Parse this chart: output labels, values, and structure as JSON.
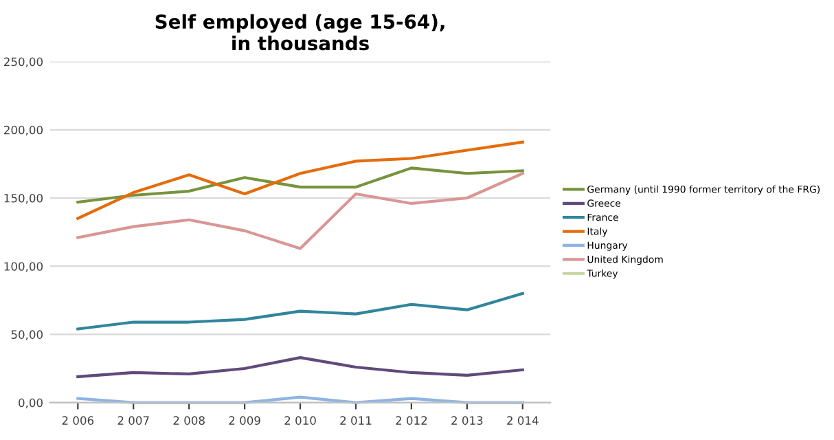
{
  "chart_data": {
    "type": "line",
    "title": "Self employed (age 15-64),\nin thousands",
    "categories": [
      "2 006",
      "2 007",
      "2 008",
      "2 009",
      "2 010",
      "2 011",
      "2 012",
      "2 013",
      "2 014"
    ],
    "series": [
      {
        "name": "Germany (until 1990 former territory of the FRG)",
        "color": "#77933c",
        "values": [
          147,
          152,
          155,
          165,
          158,
          158,
          172,
          168,
          170
        ]
      },
      {
        "name": "Greece",
        "color": "#604a7b",
        "values": [
          19,
          22,
          21,
          25,
          33,
          26,
          22,
          20,
          24
        ]
      },
      {
        "name": "France",
        "color": "#31859c",
        "values": [
          54,
          59,
          59,
          61,
          67,
          65,
          72,
          68,
          80
        ]
      },
      {
        "name": "Italy",
        "color": "#e46c0a",
        "values": [
          135,
          154,
          167,
          153,
          168,
          177,
          179,
          185,
          191
        ]
      },
      {
        "name": "Hungary",
        "color": "#8eb4e3",
        "values": [
          3,
          0,
          0,
          0,
          4,
          0,
          3,
          0,
          0
        ]
      },
      {
        "name": "United Kingdom",
        "color": "#d99694",
        "values": [
          121,
          129,
          134,
          126,
          113,
          153,
          146,
          150,
          168
        ]
      },
      {
        "name": "Turkey",
        "color": "#c3d69b",
        "values": [
          null,
          null,
          null,
          null,
          null,
          null,
          null,
          null,
          null
        ]
      }
    ],
    "ylim": [
      0,
      250
    ],
    "yticks": [
      {
        "value": 0,
        "label": "0,00"
      },
      {
        "value": 50,
        "label": "50,00"
      },
      {
        "value": 100,
        "label": "100,00"
      },
      {
        "value": 150,
        "label": "150,00"
      },
      {
        "value": 200,
        "label": "200,00"
      },
      {
        "value": 250,
        "label": "250,00"
      }
    ],
    "grid": "y",
    "legend": "right",
    "marker": "none",
    "line_style": "solid"
  }
}
